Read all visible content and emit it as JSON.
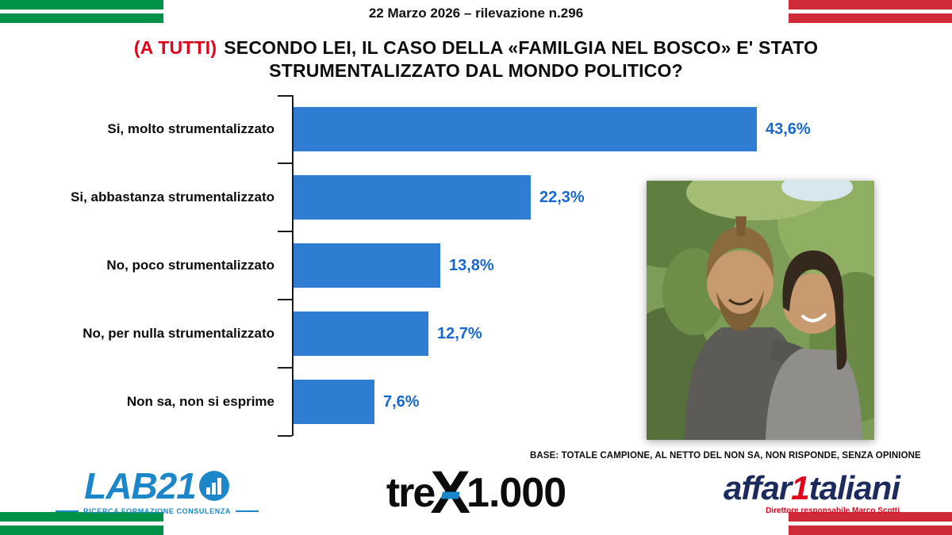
{
  "header": {
    "date": "22 Marzo 2026",
    "separator": "–",
    "rilevazione_label": "rilevazione n.",
    "rilevazione_number": "296"
  },
  "title": {
    "tag": "(A TUTTI)",
    "line1": "SECONDO LEI, IL CASO DELLA «FAMILGIA NEL BOSCO» E' STATO",
    "line2": "STRUMENTALIZZATO DAL MONDO POLITICO?"
  },
  "chart_data": {
    "type": "bar",
    "orientation": "horizontal",
    "title": "Secondo lei, il caso della «Familgia nel bosco» e' stato strumentalizzato dal mondo politico?",
    "categories": [
      "Si, molto strumentalizzato",
      "Si, abbastanza strumentalizzato",
      "No, poco strumentalizzato",
      "No, per nulla strumentalizzato",
      "Non sa, non si esprime"
    ],
    "values": [
      43.6,
      22.3,
      13.8,
      12.7,
      7.6
    ],
    "value_labels": [
      "43,6%",
      "22,3%",
      "13,8%",
      "12,7%",
      "7,6%"
    ],
    "bar_color": "#2e7dd2",
    "xlim": [
      0,
      50
    ],
    "grid": false,
    "legend": false
  },
  "base_note": "BASE: TOTALE CAMPIONE, AL NETTO DEL NON SA, NON RISPONDE, SENZA OPINIONE",
  "footer": {
    "lab21": {
      "name": "LAB21",
      "subtitle": "RICERCA FORMAZIONE CONSULENZA"
    },
    "trex": {
      "part1": "tre",
      "x": "X",
      "part2": "1.000"
    },
    "affaritaliani": {
      "part1": "affar",
      "one": "1",
      "part2": "taliani",
      "subtitle": "Direttore responsabile Marco Scotti"
    }
  },
  "colors": {
    "bar_blue": "#2e7dd2",
    "value_blue": "#1668cf",
    "accent_red": "#e3001b",
    "flag_green": "#009246",
    "flag_red": "#ce2b37",
    "lab21_blue": "#1b86c9",
    "affari_navy": "#1c2a5e"
  }
}
